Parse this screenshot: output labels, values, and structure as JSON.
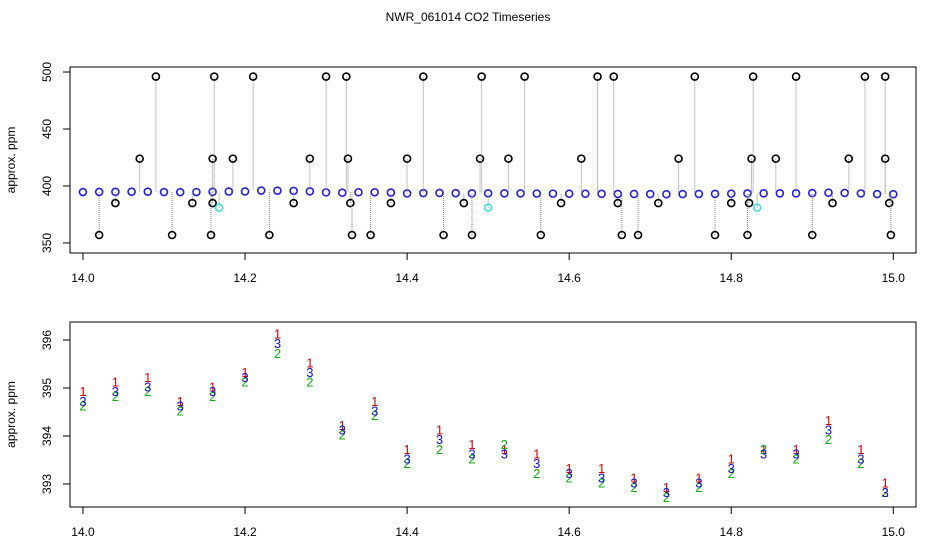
{
  "chart_data": [
    {
      "type": "scatter",
      "title": "NWR_061014  CO2 Timeseries",
      "y_label": "approx. ppm",
      "xlim": [
        13.984,
        15.028
      ],
      "ylim": [
        341.2,
        504.4
      ],
      "xticks": [
        {
          "value": 14.0,
          "label": "14.0"
        },
        {
          "value": 14.2,
          "label": "14.2"
        },
        {
          "value": 14.4,
          "label": "14.4"
        },
        {
          "value": 14.6,
          "label": "14.6"
        },
        {
          "value": 14.8,
          "label": "14.8"
        },
        {
          "value": 15.0,
          "label": "15.0"
        }
      ],
      "yticks": [
        350,
        400,
        450,
        500
      ],
      "series": [
        {
          "color": "#2020e0",
          "x": [
            14.0,
            14.02,
            14.04,
            14.06,
            14.08,
            14.1,
            14.12,
            14.14,
            14.16,
            14.18,
            14.2,
            14.22,
            14.24,
            14.26,
            14.28,
            14.3,
            14.32,
            14.34,
            14.36,
            14.38,
            14.4,
            14.42,
            14.44,
            14.46,
            14.48,
            14.5,
            14.52,
            14.54,
            14.56,
            14.58,
            14.6,
            14.62,
            14.64,
            14.66,
            14.68,
            14.7,
            14.72,
            14.74,
            14.76,
            14.78,
            14.8,
            14.82,
            14.84,
            14.86,
            14.88,
            14.9,
            14.92,
            14.94,
            14.96,
            14.98,
            15.0
          ],
          "values": [
            394.7,
            394.8,
            394.9,
            395.0,
            395.0,
            394.7,
            394.6,
            394.7,
            394.9,
            395.1,
            395.2,
            396.0,
            395.9,
            395.7,
            395.3,
            394.4,
            394.1,
            394.5,
            394.5,
            394.2,
            393.5,
            393.8,
            393.9,
            393.7,
            393.6,
            393.6,
            393.6,
            393.5,
            393.4,
            393.3,
            393.2,
            393.2,
            393.1,
            393.0,
            393.0,
            392.9,
            392.8,
            392.9,
            393.0,
            393.1,
            393.3,
            393.5,
            393.6,
            393.6,
            393.6,
            393.8,
            394.1,
            393.9,
            393.5,
            392.9,
            392.8
          ]
        },
        {
          "color": "#000000",
          "x": [
            14.02,
            14.04,
            14.07,
            14.09,
            14.11,
            14.135,
            14.158,
            14.16,
            14.16,
            14.162,
            14.185,
            14.21,
            14.23,
            14.26,
            14.28,
            14.3,
            14.325,
            14.327,
            14.33,
            14.332,
            14.355,
            14.38,
            14.4,
            14.42,
            14.445,
            14.47,
            14.48,
            14.49,
            14.492,
            14.525,
            14.545,
            14.565,
            14.59,
            14.615,
            14.635,
            14.655,
            14.66,
            14.665,
            14.685,
            14.71,
            14.735,
            14.755,
            14.78,
            14.8,
            14.82,
            14.822,
            14.825,
            14.827,
            14.855,
            14.88,
            14.9,
            14.925,
            14.945,
            14.965,
            14.99,
            14.99,
            14.995,
            14.997
          ],
          "values": [
            357,
            385,
            424,
            496,
            357,
            385,
            357,
            385,
            424,
            496,
            424,
            496,
            357,
            385,
            424,
            496,
            496,
            424,
            385,
            357,
            357,
            385,
            424,
            496,
            357,
            385,
            357,
            424,
            496,
            424,
            496,
            357,
            385,
            424,
            496,
            496,
            385,
            357,
            357,
            385,
            424,
            496,
            357,
            385,
            357,
            385,
            424,
            496,
            424,
            496,
            357,
            385,
            424,
            496,
            496,
            424,
            385,
            357
          ]
        },
        {
          "color": "#40e0e0",
          "x": [
            14.168,
            14.5,
            14.832
          ],
          "values": [
            381,
            381,
            381
          ]
        }
      ]
    },
    {
      "type": "scatter",
      "y_label": "approx. ppm",
      "xlim": [
        13.984,
        15.028
      ],
      "ylim": [
        392.52,
        396.375
      ],
      "xticks": [
        {
          "value": 14.0,
          "label": "14.0"
        },
        {
          "value": 14.2,
          "label": "14.2"
        },
        {
          "value": 14.4,
          "label": "14.4"
        },
        {
          "value": 14.6,
          "label": "14.6"
        },
        {
          "value": 14.8,
          "label": "14.8"
        },
        {
          "value": 15.0,
          "label": "15.0"
        }
      ],
      "yticks": [
        393,
        394,
        395,
        396
      ],
      "x": [
        14.0,
        14.04,
        14.08,
        14.12,
        14.16,
        14.2,
        14.24,
        14.28,
        14.32,
        14.36,
        14.4,
        14.44,
        14.48,
        14.52,
        14.56,
        14.6,
        14.64,
        14.68,
        14.72,
        14.76,
        14.8,
        14.84,
        14.88,
        14.92,
        14.96,
        14.99
      ],
      "series": [
        {
          "marker": "1",
          "color": "#e00000",
          "values": [
            394.9,
            395.1,
            395.2,
            394.7,
            395.0,
            395.3,
            396.1,
            395.5,
            394.2,
            394.7,
            393.7,
            394.1,
            393.8,
            393.7,
            393.6,
            393.3,
            393.3,
            393.1,
            392.9,
            393.1,
            393.5,
            393.7,
            393.7,
            394.3,
            393.7,
            393.0
          ]
        },
        {
          "marker": "2",
          "color": "#10b010",
          "values": [
            394.6,
            394.8,
            394.9,
            394.5,
            394.8,
            395.1,
            395.7,
            395.1,
            394.0,
            394.4,
            393.4,
            393.7,
            393.5,
            393.8,
            393.2,
            393.1,
            393.0,
            392.9,
            392.7,
            392.9,
            393.2,
            393.7,
            393.5,
            393.9,
            393.4,
            392.8
          ]
        },
        {
          "marker": "3",
          "color": "#1010d0",
          "values": [
            394.7,
            394.9,
            395.0,
            394.6,
            394.9,
            395.2,
            395.9,
            395.3,
            394.1,
            394.5,
            393.5,
            393.9,
            393.6,
            393.6,
            393.4,
            393.2,
            393.1,
            393.0,
            392.8,
            393.0,
            393.3,
            393.6,
            393.6,
            394.1,
            393.5,
            392.8
          ]
        }
      ]
    }
  ]
}
